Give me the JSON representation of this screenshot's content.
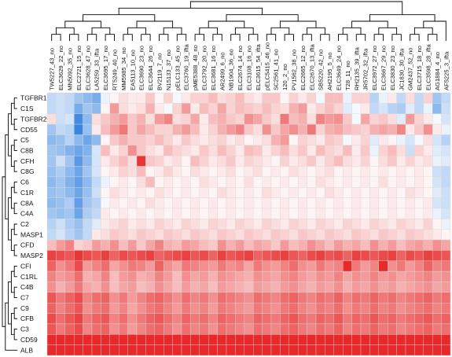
{
  "chart_data": {
    "type": "heatmap",
    "title": "",
    "xlabel": "",
    "ylabel": "",
    "columns": [
      "TW5227_43_no",
      "ELC3629_22_no",
      "MN5092_35_no",
      "ELC2721_15_no",
      "ELC3628_47_no",
      "LA5259_33_ifta",
      "ELC3695_17_no",
      "RT5249_40_no",
      "MM5985_34_no",
      "EA5113_10_no",
      "ELC3690_23_no",
      "ELC3644_26_no",
      "BV2119_7_no",
      "N15133_37_no",
      "pELC133_45_no",
      "ELC3760_19_ifta",
      "pME5388_48_no",
      "ELC3792_20_no",
      "ELC3681_16_no",
      "AR2499_6_no",
      "NB1904_36_no",
      "ELC2674_14_no",
      "ELC3108_16_no",
      "ELC3615_54_ifta",
      "pELC5415_46_no",
      "SC2561_41_no",
      "120_2_no",
      "PV1562_38_no",
      "ELC2665_12_no",
      "ELC2670_13_ifta",
      "SB5220_42_no",
      "AH2195_5_no",
      "ELC3649_24_no",
      "T28_11_no",
      "RH2135_39_ifta",
      "JR5702_32_ifta",
      "ELC3972_27_no",
      "ELC3667_29_no",
      "ELC3830_23_no",
      "JC1830_30_ifta",
      "GM2437_52_no",
      "ELC3715_18_no",
      "ELC3598_28_ifta",
      "AG1884_4_no",
      "AF5225_3_ifta"
    ],
    "rows": [
      "TGFBR1",
      "C1S",
      "TGFBR2",
      "CD55",
      "C5",
      "C8B",
      "CFH",
      "C8G",
      "C6",
      "C1R",
      "C8A",
      "C4A",
      "C2",
      "MASP1",
      "CFD",
      "MASP2",
      "CFI",
      "C1RL",
      "C4B",
      "C7",
      "C9",
      "CFB",
      "C3",
      "CD59",
      "ALB"
    ],
    "color_scale": {
      "low": "#2f7fe0",
      "mid": "#ffffff",
      "high": "#e81e1e",
      "range": [
        -1,
        1
      ]
    },
    "values": [
      [
        -0.3,
        -0.25,
        -0.3,
        -0.45,
        -0.55,
        -0.65,
        -0.1,
        0.05,
        0.15,
        0.1,
        0.1,
        0.25,
        0.05,
        0.2,
        -0.05,
        0.1,
        0.2,
        0.2,
        0.3,
        0.15,
        0.2,
        0.3,
        0.15,
        0.1,
        0.25,
        0.25,
        0.05,
        0.2,
        0.1,
        0.2,
        -0.05,
        0.3,
        0.3,
        -0.1,
        0.2,
        0.2,
        -0.35,
        -0.1,
        0.1,
        -0.3,
        0.15,
        -0.3,
        0.2,
        -0.45,
        -0.3
      ],
      [
        -0.3,
        -0.25,
        -0.3,
        -0.65,
        -0.45,
        -0.55,
        0.05,
        0.45,
        0.15,
        0.1,
        0.15,
        0.35,
        0.1,
        -0.05,
        0.2,
        0.45,
        0.1,
        0.3,
        0.2,
        0.4,
        0.2,
        0.3,
        0.25,
        0.2,
        0.3,
        0.2,
        0.15,
        0.35,
        0.45,
        0.1,
        0.2,
        0.3,
        0.2,
        -0.15,
        -0.05,
        0.1,
        -0.3,
        -0.2,
        -0.35,
        -0.4,
        -0.15,
        -0.3,
        -0.1,
        -0.55,
        -0.25
      ],
      [
        0.15,
        -0.25,
        -0.2,
        -0.9,
        -0.55,
        0.15,
        0.25,
        0.35,
        0.45,
        0.25,
        0.35,
        0.15,
        0.45,
        0.55,
        0.15,
        0.2,
        0.4,
        0.1,
        0.3,
        0.35,
        0.25,
        0.2,
        0.5,
        0.4,
        0.25,
        0.15,
        0.6,
        0.3,
        0.35,
        0.15,
        0.55,
        0.45,
        0.5,
        0.25,
        -0.05,
        0.4,
        0.2,
        0.25,
        0.15,
        -0.15,
        0.45,
        0.2,
        0.1,
        -0.05,
        -0.2
      ],
      [
        -0.45,
        -0.3,
        -0.35,
        -0.95,
        -0.5,
        0.1,
        0.3,
        0.45,
        0.6,
        0.25,
        0.4,
        0.3,
        0.2,
        0.2,
        0.35,
        0.45,
        0.3,
        0.1,
        0.2,
        0.35,
        0.45,
        0.55,
        0.25,
        0.15,
        0.5,
        0.25,
        0.4,
        0.5,
        0.35,
        0.6,
        0.2,
        0.35,
        0.4,
        0.3,
        0.25,
        0.2,
        0.35,
        0.4,
        0.35,
        0.55,
        0.1,
        0.25,
        0.5,
        0.1,
        -0.1
      ],
      [
        -0.55,
        -0.5,
        -0.35,
        -0.55,
        -0.7,
        -0.55,
        0.05,
        0.25,
        0.35,
        0.25,
        0.25,
        0.2,
        0.3,
        0.2,
        0.1,
        0.25,
        0.15,
        0.1,
        0.15,
        0.2,
        0.1,
        0.15,
        0.05,
        0.1,
        0.15,
        0.35,
        0.45,
        0.05,
        0.2,
        0.15,
        0.1,
        0.25,
        0.2,
        -0.05,
        0.1,
        0.2,
        -0.15,
        0.1,
        0.05,
        -0.1,
        -0.2,
        -0.05,
        0.15,
        -0.2,
        -0.35
      ],
      [
        -0.45,
        -0.5,
        -0.6,
        -0.7,
        -0.6,
        -0.2,
        0.3,
        0.1,
        0.2,
        0.5,
        0.25,
        0.15,
        0.1,
        0.3,
        0.2,
        0.15,
        0.1,
        0.25,
        0.15,
        0.3,
        0.2,
        0.1,
        0.3,
        0.25,
        0.1,
        0.2,
        0.3,
        0.15,
        0.25,
        0.1,
        0.3,
        0.2,
        0.15,
        0.3,
        0.1,
        0.25,
        -0.1,
        0.2,
        0.3,
        0.15,
        -0.25,
        0.2,
        0.1,
        -0.15,
        -0.2
      ],
      [
        -0.45,
        -0.25,
        -0.45,
        -0.8,
        -0.55,
        -0.2,
        0.1,
        0.2,
        0.3,
        0.15,
        0.9,
        0.25,
        0.2,
        0.1,
        0.15,
        0.05,
        0.3,
        0.2,
        0.1,
        0.15,
        0.25,
        0.1,
        0.2,
        0.15,
        0.1,
        0.05,
        0.2,
        0.1,
        0.15,
        0.25,
        0.1,
        0.2,
        0.3,
        0.15,
        0.1,
        0.2,
        0.05,
        0.15,
        0.25,
        0.1,
        0.2,
        0.1,
        0.15,
        -0.1,
        -0.15
      ],
      [
        -0.5,
        -0.4,
        -0.55,
        -0.7,
        -0.45,
        -0.2,
        0.05,
        0.1,
        0.2,
        0.15,
        0.3,
        0.05,
        0.1,
        0.2,
        0.1,
        0.05,
        0.15,
        0.1,
        0.05,
        0.1,
        0.15,
        0.05,
        0.1,
        0.15,
        0.05,
        0.1,
        0.05,
        0.15,
        0.1,
        0.05,
        0.1,
        0.15,
        0.05,
        0.1,
        0.05,
        0.1,
        0.05,
        0.1,
        0.05,
        0.1,
        0.05,
        0.1,
        0.05,
        -0.25,
        -0.3
      ],
      [
        -0.55,
        -0.45,
        -0.6,
        -0.75,
        -0.55,
        -0.3,
        -0.1,
        0.05,
        0.1,
        0.05,
        0.15,
        0.3,
        0.05,
        0.1,
        0.05,
        0.1,
        0.05,
        0.15,
        0.1,
        0.05,
        0.1,
        0.05,
        0.15,
        0.05,
        0.1,
        0.05,
        0.1,
        0.05,
        0.1,
        0.05,
        0.15,
        0.1,
        0.05,
        0.1,
        0.05,
        0.1,
        0.05,
        0.15,
        0.05,
        0.1,
        0.05,
        0.1,
        0.05,
        -0.2,
        -0.3
      ],
      [
        -0.5,
        -0.45,
        -0.55,
        -0.7,
        -0.5,
        -0.25,
        0.05,
        0.15,
        0.1,
        0.05,
        0.1,
        0.05,
        0.15,
        0.1,
        0.05,
        0.1,
        0.05,
        0.1,
        0.05,
        0.15,
        0.1,
        0.05,
        0.1,
        0.05,
        0.15,
        0.1,
        0.05,
        0.1,
        0.05,
        0.1,
        0.05,
        0.15,
        0.1,
        0.05,
        0.1,
        0.05,
        0.1,
        0.05,
        0.1,
        0.05,
        0.15,
        0.1,
        0.05,
        -0.15,
        -0.25
      ],
      [
        -0.55,
        -0.5,
        -0.4,
        -0.75,
        -0.45,
        -0.35,
        -0.05,
        0.1,
        0.05,
        0.1,
        0.05,
        0.15,
        0.1,
        0.05,
        0.1,
        0.05,
        0.1,
        0.05,
        0.1,
        0.05,
        0.1,
        0.05,
        0.1,
        0.05,
        0.1,
        0.05,
        0.1,
        0.05,
        0.1,
        0.05,
        0.1,
        0.05,
        0.1,
        0.05,
        0.1,
        0.05,
        0.1,
        0.05,
        0.1,
        0.05,
        0.1,
        0.05,
        0.1,
        -0.2,
        -0.25
      ],
      [
        -0.45,
        -0.5,
        -0.45,
        -0.7,
        -0.4,
        -0.3,
        0.1,
        0.05,
        0.1,
        0.05,
        0.1,
        0.05,
        0.1,
        0.05,
        0.1,
        0.05,
        0.1,
        0.05,
        0.1,
        0.05,
        0.1,
        0.05,
        0.1,
        0.05,
        0.1,
        0.05,
        0.1,
        0.05,
        0.1,
        0.05,
        0.1,
        0.05,
        0.1,
        0.05,
        0.1,
        0.05,
        0.1,
        0.05,
        0.1,
        0.05,
        0.1,
        0.05,
        0.1,
        -0.1,
        -0.2
      ],
      [
        -0.35,
        -0.25,
        -0.4,
        -0.5,
        -0.3,
        -0.15,
        0.1,
        0.15,
        0.2,
        0.1,
        0.15,
        0.1,
        0.2,
        0.15,
        0.1,
        0.2,
        0.15,
        0.1,
        0.2,
        0.15,
        0.1,
        0.2,
        0.15,
        0.1,
        0.2,
        0.15,
        0.1,
        0.2,
        0.15,
        0.1,
        0.2,
        0.15,
        0.1,
        0.2,
        0.15,
        0.1,
        0.2,
        0.15,
        0.1,
        0.2,
        0.15,
        0.1,
        0.2,
        0.05,
        -0.1
      ],
      [
        -0.3,
        -0.2,
        -0.35,
        -0.45,
        -0.3,
        0.1,
        0.15,
        0.25,
        0.2,
        0.15,
        0.25,
        0.2,
        0.15,
        0.25,
        0.2,
        0.15,
        0.25,
        0.2,
        0.15,
        0.25,
        0.2,
        0.15,
        0.25,
        0.2,
        0.15,
        0.25,
        0.2,
        0.15,
        0.25,
        0.2,
        0.15,
        0.25,
        0.2,
        0.15,
        0.25,
        0.2,
        0.15,
        0.25,
        0.2,
        0.15,
        0.25,
        0.2,
        0.15,
        0.1,
        0.05
      ],
      [
        0.3,
        0.45,
        0.55,
        0.2,
        0.25,
        0.45,
        0.35,
        0.5,
        0.3,
        0.45,
        0.25,
        0.4,
        0.55,
        0.35,
        0.3,
        0.45,
        0.4,
        0.3,
        0.25,
        0.5,
        0.35,
        0.45,
        0.3,
        0.4,
        0.35,
        0.25,
        0.45,
        0.3,
        0.35,
        0.5,
        0.4,
        0.3,
        0.45,
        0.35,
        0.4,
        0.3,
        0.5,
        0.35,
        0.45,
        0.3,
        0.4,
        0.45,
        0.35,
        0.5,
        0.4
      ],
      [
        0.85,
        0.8,
        0.75,
        0.9,
        0.8,
        0.75,
        0.85,
        0.7,
        0.8,
        0.75,
        0.8,
        0.85,
        0.7,
        0.75,
        0.8,
        0.85,
        0.75,
        0.8,
        0.7,
        0.85,
        0.75,
        0.8,
        0.85,
        0.7,
        0.75,
        0.8,
        0.85,
        0.75,
        0.7,
        0.8,
        0.85,
        0.75,
        0.8,
        0.7,
        0.85,
        0.8,
        0.75,
        0.8,
        0.85,
        0.7,
        0.8,
        0.75,
        0.85,
        0.8,
        0.75
      ],
      [
        0.7,
        0.5,
        0.6,
        0.8,
        0.45,
        0.55,
        0.65,
        0.4,
        0.5,
        0.6,
        0.55,
        0.45,
        0.7,
        0.5,
        0.4,
        0.6,
        0.55,
        0.5,
        0.45,
        0.6,
        0.5,
        0.55,
        0.4,
        0.6,
        0.5,
        0.45,
        0.55,
        0.65,
        0.5,
        0.45,
        0.6,
        0.5,
        0.55,
        0.95,
        0.6,
        0.45,
        0.55,
        0.95,
        0.5,
        0.6,
        0.45,
        0.55,
        0.7,
        0.55,
        0.6
      ],
      [
        0.55,
        0.45,
        0.5,
        0.65,
        0.35,
        0.4,
        0.55,
        0.3,
        0.45,
        0.5,
        0.35,
        0.4,
        0.55,
        0.45,
        0.3,
        0.5,
        0.4,
        0.45,
        0.35,
        0.5,
        0.45,
        0.4,
        0.35,
        0.5,
        0.45,
        0.4,
        0.5,
        0.55,
        0.45,
        0.4,
        0.5,
        0.45,
        0.55,
        0.4,
        0.5,
        0.45,
        0.55,
        0.45,
        0.5,
        0.4,
        0.45,
        0.5,
        0.55,
        0.45,
        0.5
      ],
      [
        0.5,
        0.35,
        0.45,
        0.6,
        0.4,
        0.35,
        0.5,
        0.3,
        0.4,
        0.45,
        0.3,
        0.35,
        0.5,
        0.4,
        0.3,
        0.45,
        0.35,
        0.4,
        0.3,
        0.45,
        0.4,
        0.35,
        0.3,
        0.45,
        0.4,
        0.35,
        0.45,
        0.5,
        0.4,
        0.35,
        0.45,
        0.4,
        0.5,
        0.35,
        0.45,
        0.4,
        0.5,
        0.4,
        0.45,
        0.35,
        0.4,
        0.45,
        0.5,
        0.4,
        0.45
      ],
      [
        0.75,
        0.6,
        0.7,
        0.8,
        0.55,
        0.65,
        0.7,
        0.5,
        0.6,
        0.45,
        0.55,
        0.65,
        0.7,
        0.6,
        0.5,
        0.65,
        0.55,
        0.6,
        0.5,
        0.65,
        0.6,
        0.55,
        0.5,
        0.65,
        0.6,
        0.55,
        0.65,
        0.7,
        0.6,
        0.55,
        0.65,
        0.6,
        0.7,
        0.55,
        0.65,
        0.6,
        0.7,
        0.6,
        0.65,
        0.55,
        0.6,
        0.65,
        0.7,
        0.6,
        0.65
      ],
      [
        0.7,
        0.55,
        0.65,
        0.75,
        0.5,
        0.6,
        0.65,
        0.45,
        0.55,
        0.4,
        0.5,
        0.6,
        0.65,
        0.55,
        0.45,
        0.6,
        0.5,
        0.55,
        0.45,
        0.6,
        0.55,
        0.5,
        0.45,
        0.6,
        0.55,
        0.5,
        0.6,
        0.65,
        0.55,
        0.5,
        0.6,
        0.55,
        0.65,
        0.5,
        0.6,
        0.55,
        0.65,
        0.55,
        0.6,
        0.5,
        0.55,
        0.6,
        0.65,
        0.55,
        0.6
      ],
      [
        0.8,
        0.65,
        0.75,
        0.85,
        0.6,
        0.7,
        0.75,
        0.55,
        0.65,
        0.5,
        0.6,
        0.7,
        0.75,
        0.65,
        0.55,
        0.7,
        0.6,
        0.65,
        0.55,
        0.7,
        0.65,
        0.6,
        0.55,
        0.7,
        0.65,
        0.6,
        0.7,
        0.75,
        0.65,
        0.6,
        0.7,
        0.65,
        0.75,
        0.6,
        0.7,
        0.65,
        0.75,
        0.65,
        0.7,
        0.6,
        0.65,
        0.7,
        0.75,
        0.65,
        0.7
      ],
      [
        0.75,
        0.6,
        0.7,
        0.8,
        0.55,
        0.65,
        0.7,
        0.5,
        0.6,
        0.45,
        0.55,
        0.65,
        0.7,
        0.6,
        0.5,
        0.65,
        0.55,
        0.6,
        0.5,
        0.65,
        0.6,
        0.55,
        0.5,
        0.65,
        0.6,
        0.55,
        0.65,
        0.7,
        0.6,
        0.55,
        0.65,
        0.6,
        0.7,
        0.55,
        0.65,
        0.6,
        0.7,
        0.6,
        0.65,
        0.55,
        0.6,
        0.65,
        0.7,
        0.6,
        0.65
      ],
      [
        0.95,
        0.95,
        0.95,
        0.95,
        0.95,
        0.95,
        0.95,
        0.95,
        0.95,
        0.95,
        0.95,
        0.95,
        0.95,
        0.95,
        0.95,
        0.95,
        0.95,
        0.95,
        0.95,
        0.95,
        0.95,
        0.95,
        0.95,
        0.95,
        0.95,
        0.95,
        0.95,
        0.95,
        0.95,
        0.95,
        0.95,
        0.95,
        0.95,
        0.95,
        0.95,
        0.95,
        0.95,
        0.95,
        0.95,
        0.95,
        0.95,
        0.95,
        0.95,
        0.95,
        0.95
      ],
      [
        0.95,
        0.95,
        0.95,
        0.95,
        0.95,
        0.95,
        0.95,
        0.95,
        0.95,
        0.95,
        0.95,
        0.95,
        0.95,
        0.95,
        0.95,
        0.95,
        0.95,
        0.95,
        0.95,
        0.95,
        0.95,
        0.95,
        0.95,
        0.95,
        0.95,
        0.95,
        0.95,
        0.95,
        0.95,
        0.95,
        0.95,
        0.95,
        0.95,
        0.95,
        0.95,
        0.95,
        0.95,
        0.95,
        0.95,
        0.95,
        0.95,
        0.95,
        0.95,
        0.95,
        0.95
      ]
    ],
    "dendrograms": {
      "columns": true,
      "rows": true
    }
  }
}
